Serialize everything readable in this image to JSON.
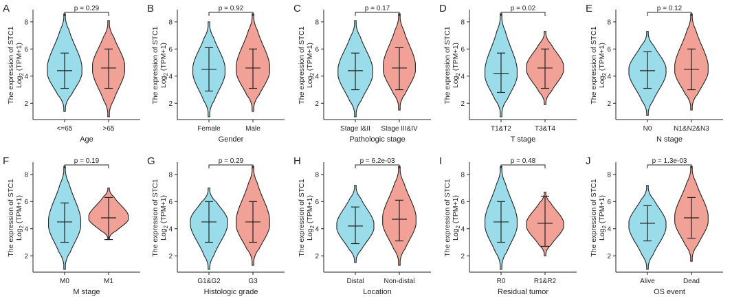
{
  "figure": {
    "y_axis_label_line1": "The expression of STC1",
    "y_axis_label_line2_prefix": "Log",
    "y_axis_label_line2_sub": "2",
    "y_axis_label_line2_suffix": " (TPM+1)"
  },
  "chart_data": [
    {
      "letter": "A",
      "type": "violin",
      "xlabel": "Age",
      "categories": [
        "<=65",
        ">65"
      ],
      "p_value": "p = 0.29",
      "ylim": [
        1,
        8.6
      ],
      "yticks": [
        2,
        4,
        6,
        8
      ],
      "groups": [
        {
          "name": "<=65",
          "color": "#9bdcea",
          "min": 1.4,
          "max": 8.6,
          "q_low": 3.1,
          "median": 4.4,
          "q_high": 5.7,
          "mode": 4.4,
          "max_density": 0.28
        },
        {
          "name": ">65",
          "color": "#f2a196",
          "min": 1.0,
          "max": 8.1,
          "q_low": 3.1,
          "median": 4.6,
          "q_high": 6.0,
          "mode": 4.6,
          "max_density": 0.26
        }
      ]
    },
    {
      "letter": "B",
      "type": "violin",
      "xlabel": "Gender",
      "categories": [
        "Female",
        "Male"
      ],
      "p_value": "p = 0.92",
      "ylim": [
        1,
        8.6
      ],
      "yticks": [
        2,
        4,
        6,
        8
      ],
      "groups": [
        {
          "name": "Female",
          "color": "#9bdcea",
          "min": 1.0,
          "max": 8.0,
          "q_low": 2.9,
          "median": 4.5,
          "q_high": 6.1,
          "mode": 4.4,
          "max_density": 0.26
        },
        {
          "name": "Male",
          "color": "#f2a196",
          "min": 1.4,
          "max": 8.6,
          "q_low": 3.1,
          "median": 4.6,
          "q_high": 6.0,
          "mode": 4.5,
          "max_density": 0.27
        }
      ]
    },
    {
      "letter": "C",
      "type": "violin",
      "xlabel": "Pathologic stage",
      "categories": [
        "Stage I&II",
        "Stage III&IV"
      ],
      "p_value": "p = 0.17",
      "ylim": [
        1,
        8.6
      ],
      "yticks": [
        2,
        4,
        6,
        8
      ],
      "groups": [
        {
          "name": "Stage I&II",
          "color": "#9bdcea",
          "min": 1.0,
          "max": 8.1,
          "q_low": 3.0,
          "median": 4.4,
          "q_high": 5.7,
          "mode": 4.3,
          "max_density": 0.28
        },
        {
          "name": "Stage III&IV",
          "color": "#f2a196",
          "min": 1.5,
          "max": 8.6,
          "q_low": 3.0,
          "median": 4.6,
          "q_high": 6.1,
          "mode": 4.6,
          "max_density": 0.26
        }
      ]
    },
    {
      "letter": "D",
      "type": "violin",
      "xlabel": "T stage",
      "categories": [
        "T1&T2",
        "T3&T4"
      ],
      "p_value": "p = 0.02",
      "ylim": [
        1,
        8.6
      ],
      "yticks": [
        2,
        4,
        6,
        8
      ],
      "groups": [
        {
          "name": "T1&T2",
          "color": "#9bdcea",
          "min": 1.0,
          "max": 8.6,
          "q_low": 2.8,
          "median": 4.2,
          "q_high": 5.7,
          "mode": 4.2,
          "max_density": 0.26
        },
        {
          "name": "T3&T4",
          "color": "#f2a196",
          "min": 1.9,
          "max": 7.3,
          "q_low": 3.1,
          "median": 4.6,
          "q_high": 6.0,
          "mode": 4.6,
          "max_density": 0.3
        }
      ]
    },
    {
      "letter": "E",
      "type": "violin",
      "xlabel": "N stage",
      "categories": [
        "N0",
        "N1&N2&N3"
      ],
      "p_value": "p = 0.12",
      "ylim": [
        1,
        8.6
      ],
      "yticks": [
        2,
        4,
        6,
        8
      ],
      "groups": [
        {
          "name": "N0",
          "color": "#9bdcea",
          "min": 1.1,
          "max": 7.3,
          "q_low": 3.1,
          "median": 4.4,
          "q_high": 5.8,
          "mode": 4.4,
          "max_density": 0.3
        },
        {
          "name": "N1&N2&N3",
          "color": "#f2a196",
          "min": 1.5,
          "max": 8.6,
          "q_low": 3.0,
          "median": 4.5,
          "q_high": 6.0,
          "mode": 4.5,
          "max_density": 0.27
        }
      ]
    },
    {
      "letter": "F",
      "type": "violin",
      "xlabel": "M stage",
      "categories": [
        "M0",
        "M1"
      ],
      "p_value": "p = 0.19",
      "ylim": [
        1,
        8.6
      ],
      "yticks": [
        2,
        4,
        6,
        8
      ],
      "groups": [
        {
          "name": "M0",
          "color": "#9bdcea",
          "min": 1.0,
          "max": 8.6,
          "q_low": 3.0,
          "median": 4.5,
          "q_high": 5.9,
          "mode": 4.4,
          "max_density": 0.26
        },
        {
          "name": "M1",
          "color": "#f2a196",
          "min": 3.2,
          "max": 7.0,
          "q_low": 3.2,
          "median": 4.8,
          "q_high": 6.3,
          "mode": 4.8,
          "max_density": 0.32
        }
      ]
    },
    {
      "letter": "G",
      "type": "violin",
      "xlabel": "Histologic grade",
      "categories": [
        "G1&G2",
        "G3"
      ],
      "p_value": "p = 0.29",
      "ylim": [
        1,
        8.6
      ],
      "yticks": [
        2,
        4,
        6,
        8
      ],
      "groups": [
        {
          "name": "G1&G2",
          "color": "#9bdcea",
          "min": 1.0,
          "max": 7.0,
          "q_low": 3.0,
          "median": 4.5,
          "q_high": 6.0,
          "mode": 4.5,
          "max_density": 0.3
        },
        {
          "name": "G3",
          "color": "#f2a196",
          "min": 1.3,
          "max": 8.6,
          "q_low": 3.0,
          "median": 4.5,
          "q_high": 6.0,
          "mode": 4.4,
          "max_density": 0.27
        }
      ]
    },
    {
      "letter": "H",
      "type": "violin",
      "xlabel": "Location",
      "categories": [
        "Distal",
        "Non-distal"
      ],
      "p_value": "p = 6.2e-03",
      "ylim": [
        1,
        8.6
      ],
      "yticks": [
        2,
        4,
        6,
        8
      ],
      "groups": [
        {
          "name": "Distal",
          "color": "#9bdcea",
          "min": 1.5,
          "max": 7.2,
          "q_low": 2.9,
          "median": 4.2,
          "q_high": 5.6,
          "mode": 4.2,
          "max_density": 0.3
        },
        {
          "name": "Non-distal",
          "color": "#f2a196",
          "min": 1.3,
          "max": 8.6,
          "q_low": 3.1,
          "median": 4.7,
          "q_high": 6.1,
          "mode": 4.6,
          "max_density": 0.27
        }
      ]
    },
    {
      "letter": "I",
      "type": "violin",
      "xlabel": "Residual tumor",
      "categories": [
        "R0",
        "R1&R2"
      ],
      "p_value": "p = 0.48",
      "ylim": [
        1,
        8.6
      ],
      "yticks": [
        2,
        4,
        6,
        8
      ],
      "groups": [
        {
          "name": "R0",
          "color": "#9bdcea",
          "min": 1.0,
          "max": 8.6,
          "q_low": 3.0,
          "median": 4.5,
          "q_high": 6.0,
          "mode": 4.4,
          "max_density": 0.26
        },
        {
          "name": "R1&R2",
          "color": "#f2a196",
          "min": 2.0,
          "max": 6.7,
          "q_low": 2.7,
          "median": 4.4,
          "q_high": 6.4,
          "mode": 4.3,
          "max_density": 0.3
        }
      ]
    },
    {
      "letter": "J",
      "type": "violin",
      "xlabel": "OS event",
      "categories": [
        "Alive",
        "Dead"
      ],
      "p_value": "p = 1.3e-03",
      "ylim": [
        1,
        8.6
      ],
      "yticks": [
        2,
        4,
        6,
        8
      ],
      "groups": [
        {
          "name": "Alive",
          "color": "#9bdcea",
          "min": 1.0,
          "max": 7.2,
          "q_low": 3.1,
          "median": 4.4,
          "q_high": 5.7,
          "mode": 4.3,
          "max_density": 0.3
        },
        {
          "name": "Dead",
          "color": "#f2a196",
          "min": 1.6,
          "max": 8.6,
          "q_low": 3.3,
          "median": 4.8,
          "q_high": 6.3,
          "mode": 4.7,
          "max_density": 0.27
        }
      ]
    }
  ]
}
